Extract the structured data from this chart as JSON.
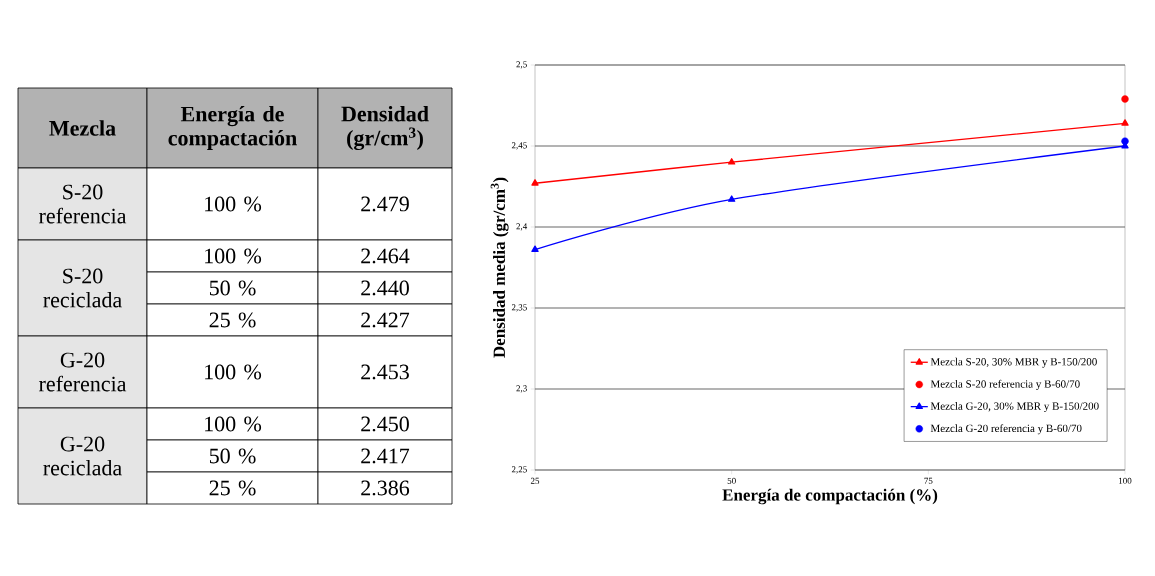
{
  "chart_data": {
    "type": "line",
    "xlabel": "Energía de compactación (%)",
    "ylabel": "Densidad media (gr/cm$^{3}$)",
    "xlim": [
      25,
      100
    ],
    "xticks": [
      25,
      50,
      75,
      100
    ],
    "ylim": [
      2.25,
      2.5
    ],
    "yticks": [
      {
        "value": 2.25,
        "label": "2,25"
      },
      {
        "value": 2.3,
        "label": "2,3"
      },
      {
        "value": 2.35,
        "label": "2,35"
      },
      {
        "value": 2.4,
        "label": "2,4"
      },
      {
        "value": 2.45,
        "label": "2,45"
      },
      {
        "value": 2.5,
        "label": "2,5"
      }
    ],
    "grid": "y",
    "legend": "bottom right",
    "series": [
      {
        "name": "Mezcla S-20, 30% MBR y B-150/200",
        "color": "#ff0000",
        "type": "line",
        "marker": "triangle",
        "x": [
          25,
          50,
          100
        ],
        "values": [
          2.427,
          2.44,
          2.464
        ]
      },
      {
        "name": "Mezcla S-20 referencia y B-60/70",
        "color": "#ff0000",
        "type": "scatter",
        "marker": "circle",
        "x": [
          100
        ],
        "values": [
          2.479
        ]
      },
      {
        "name": "Mezcla G-20, 30% MBR y B-150/200",
        "color": "#0000ff",
        "type": "line",
        "marker": "triangle",
        "x": [
          25,
          50,
          100
        ],
        "values": [
          2.386,
          2.417,
          2.45
        ]
      },
      {
        "name": "Mezcla G-20 referencia y B-60/70",
        "color": "#0000ff",
        "type": "scatter",
        "marker": "circle",
        "x": [
          100
        ],
        "values": [
          2.453
        ]
      }
    ],
    "annotations": [
      "Mezcla",
      "Energía de compactación",
      "Densidad (gr/cm$^{3}$)",
      "S-20 referencia",
      "S-20 reciclada",
      "G-20 referencia",
      "G-20 reciclada",
      "100 %",
      "100 %",
      "50 %",
      "25 %",
      "100 %",
      "100 %",
      "50 %",
      "25 %",
      "2.479",
      "2.464",
      "2.440",
      "2.427",
      "2.453",
      "2.450",
      "2.417",
      "2.386"
    ]
  }
}
